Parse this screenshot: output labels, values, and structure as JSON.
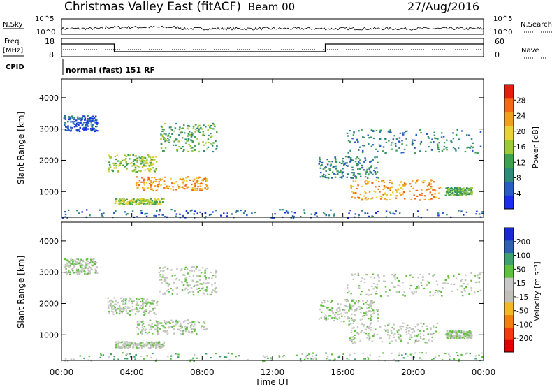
{
  "header": {
    "station": "Christmas Valley East (fitACF)",
    "beam": "Beam 00",
    "date": "27/Aug/2016"
  },
  "top_panels": {
    "nsky_label": "N.Sky",
    "nsearch_label": "N.Search",
    "nsky_ticks": [
      "10^5",
      "10^0"
    ],
    "nsearch_ticks": [
      "10^5",
      "10^0"
    ],
    "freq_label_1": "Freq.",
    "freq_label_2": "[MHz]",
    "freq_ticks": [
      "18",
      "8"
    ],
    "nave_label": "Nave",
    "nave_ticks": [
      "60",
      "0"
    ],
    "cpid_label": "CPID",
    "cpid_text": "normal (fast) 151 RF"
  },
  "time_axis": {
    "label": "Time UT",
    "ticks": [
      "00:00",
      "04:00",
      "08:00",
      "12:00",
      "16:00",
      "20:00",
      "00:00"
    ]
  },
  "colors": {
    "power": [
      "#1a2de8",
      "#2a5cc2",
      "#2f8a7a",
      "#3ea050",
      "#9cc83a",
      "#e8d23a",
      "#f0a020",
      "#f06a18",
      "#e02010"
    ],
    "velocity": [
      "#e00000",
      "#f03c10",
      "#f08010",
      "#f0b828",
      "#c0c0b8",
      "#c8c8c8",
      "#60c040",
      "#40a070",
      "#3060b0",
      "#1a2ad0"
    ]
  },
  "chart_data": [
    {
      "type": "heatmap",
      "name": "Power",
      "ylabel": "Slant Range [km]",
      "yticks": [
        1000,
        2000,
        3000,
        4000
      ],
      "ylim": [
        180,
        4600
      ],
      "xlim": [
        0,
        24
      ],
      "colorbar": {
        "label": "Power [dB]",
        "ticks": [
          4,
          8,
          12,
          16,
          20,
          24,
          28
        ]
      },
      "regions": [
        {
          "t0": 0.1,
          "t1": 2.0,
          "r0": 2950,
          "r1": 3450,
          "c": 1
        },
        {
          "t0": 2.6,
          "t1": 5.4,
          "r0": 1650,
          "r1": 2200,
          "c": 4
        },
        {
          "t0": 4.2,
          "t1": 8.3,
          "r0": 1050,
          "r1": 1500,
          "c": 6
        },
        {
          "t0": 3.0,
          "t1": 5.8,
          "r0": 600,
          "r1": 800,
          "c": 4
        },
        {
          "t0": 5.5,
          "t1": 8.8,
          "r0": 2300,
          "r1": 3200,
          "c": 3
        },
        {
          "t0": 14.6,
          "t1": 18.0,
          "r0": 1450,
          "r1": 2150,
          "c": 2
        },
        {
          "t0": 16.3,
          "t1": 21.5,
          "r0": 750,
          "r1": 1400,
          "c": 6
        },
        {
          "t0": 16.2,
          "t1": 23.8,
          "r0": 2250,
          "r1": 3000,
          "c": 2
        },
        {
          "t0": 21.8,
          "t1": 23.3,
          "r0": 900,
          "r1": 1150,
          "c": 3
        },
        {
          "t0": 0.0,
          "t1": 24.0,
          "r0": 180,
          "r1": 450,
          "c": 1
        }
      ]
    },
    {
      "type": "heatmap",
      "name": "Velocity",
      "ylabel": "Slant Range [km]",
      "yticks": [
        1000,
        2000,
        3000,
        4000
      ],
      "ylim": [
        180,
        4600
      ],
      "xlim": [
        0,
        24
      ],
      "colorbar": {
        "label": "Velocity [m s⁻¹]",
        "ticks": [
          -200,
          -100,
          -50,
          -15,
          15,
          50,
          100,
          200
        ]
      },
      "regions": [
        {
          "t0": 0.1,
          "t1": 2.0,
          "r0": 2950,
          "r1": 3450,
          "c": 5
        },
        {
          "t0": 2.6,
          "t1": 5.4,
          "r0": 1650,
          "r1": 2200,
          "c": 5
        },
        {
          "t0": 4.2,
          "t1": 8.3,
          "r0": 1050,
          "r1": 1500,
          "c": 5
        },
        {
          "t0": 3.0,
          "t1": 5.8,
          "r0": 600,
          "r1": 800,
          "c": 5
        },
        {
          "t0": 5.5,
          "t1": 8.8,
          "r0": 2300,
          "r1": 3200,
          "c": 5
        },
        {
          "t0": 14.6,
          "t1": 18.0,
          "r0": 1450,
          "r1": 2150,
          "c": 5
        },
        {
          "t0": 16.3,
          "t1": 21.5,
          "r0": 750,
          "r1": 1400,
          "c": 5
        },
        {
          "t0": 16.2,
          "t1": 23.8,
          "r0": 2250,
          "r1": 3000,
          "c": 5
        },
        {
          "t0": 21.8,
          "t1": 23.3,
          "r0": 900,
          "r1": 1150,
          "c": 5
        },
        {
          "t0": 0.0,
          "t1": 24.0,
          "r0": 180,
          "r1": 450,
          "c": 6
        }
      ]
    }
  ]
}
